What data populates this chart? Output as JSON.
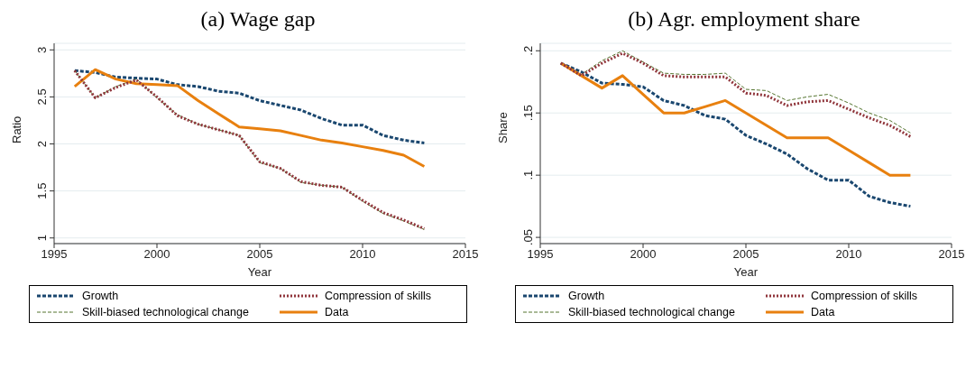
{
  "chart_data": [
    {
      "type": "line",
      "title": "(a) Wage gap",
      "xlabel": "Year",
      "ylabel": "Ratio",
      "x": [
        1996,
        1997,
        1998,
        1999,
        2000,
        2001,
        2002,
        2003,
        2004,
        2005,
        2006,
        2007,
        2008,
        2009,
        2010,
        2011,
        2012,
        2013
      ],
      "series": [
        {
          "name": "Growth",
          "color": "#1a476f",
          "line_style": "dashed",
          "values": [
            2.78,
            2.76,
            2.71,
            2.7,
            2.69,
            2.63,
            2.61,
            2.56,
            2.54,
            2.46,
            2.41,
            2.36,
            2.27,
            2.2,
            2.2,
            2.09,
            2.04,
            2.01
          ]
        },
        {
          "name": "Compression of skills",
          "color": "#90353b",
          "line_style": "dotted",
          "values": [
            2.78,
            2.49,
            2.6,
            2.68,
            2.5,
            2.3,
            2.21,
            2.15,
            2.09,
            1.81,
            1.74,
            1.6,
            1.56,
            1.54,
            1.4,
            1.27,
            1.19,
            1.1
          ]
        },
        {
          "name": "Skill-biased technological change",
          "color": "#55752f",
          "line_style": "dashed",
          "values": [
            2.78,
            2.49,
            2.61,
            2.69,
            2.49,
            2.31,
            2.21,
            2.15,
            2.09,
            1.8,
            1.74,
            1.59,
            1.56,
            1.54,
            1.39,
            1.26,
            1.18,
            1.09
          ]
        },
        {
          "name": "Data",
          "color": "#e8800f",
          "line_style": "solid",
          "values": [
            2.61,
            2.79,
            2.69,
            2.64,
            2.63,
            2.62,
            2.46,
            2.32,
            2.18,
            2.16,
            2.14,
            2.09,
            2.04,
            2.01,
            1.97,
            1.93,
            1.88,
            1.76
          ]
        }
      ],
      "xlim": [
        1995,
        2015
      ],
      "xticks": [
        1995,
        2000,
        2005,
        2010,
        2015
      ],
      "ylim": [
        0.94,
        3.07
      ],
      "yticks": [
        1,
        1.5,
        2,
        2.5,
        3
      ],
      "grid": "y",
      "legend": "bottom",
      "marker": "none"
    },
    {
      "type": "line",
      "title": "(b) Agr. employment share",
      "xlabel": "Year",
      "ylabel": "Share",
      "x": [
        1996,
        1997,
        1998,
        1999,
        2000,
        2001,
        2002,
        2003,
        2004,
        2005,
        2006,
        2007,
        2008,
        2009,
        2010,
        2011,
        2012,
        2013
      ],
      "series": [
        {
          "name": "Growth",
          "color": "#1a476f",
          "line_style": "dashed",
          "values": [
            0.19,
            0.183,
            0.174,
            0.173,
            0.171,
            0.16,
            0.156,
            0.148,
            0.145,
            0.132,
            0.125,
            0.117,
            0.105,
            0.096,
            0.096,
            0.083,
            0.078,
            0.075
          ]
        },
        {
          "name": "Compression of skills",
          "color": "#90353b",
          "line_style": "dotted",
          "values": [
            0.19,
            0.18,
            0.19,
            0.198,
            0.19,
            0.18,
            0.179,
            0.179,
            0.179,
            0.166,
            0.164,
            0.156,
            0.159,
            0.16,
            0.153,
            0.146,
            0.14,
            0.131
          ]
        },
        {
          "name": "Skill-biased technological change",
          "color": "#55752f",
          "line_style": "dashed",
          "values": [
            0.19,
            0.181,
            0.192,
            0.2,
            0.191,
            0.182,
            0.181,
            0.181,
            0.182,
            0.169,
            0.168,
            0.16,
            0.163,
            0.165,
            0.158,
            0.15,
            0.144,
            0.134
          ]
        },
        {
          "name": "Data",
          "color": "#e8800f",
          "line_style": "solid",
          "values": [
            0.19,
            0.18,
            0.17,
            0.18,
            0.165,
            0.15,
            0.15,
            0.155,
            0.16,
            0.15,
            0.14,
            0.13,
            0.13,
            0.13,
            0.12,
            0.11,
            0.1,
            0.1
          ]
        }
      ],
      "xlim": [
        1995,
        2015
      ],
      "xticks": [
        1995,
        2000,
        2005,
        2010,
        2015
      ],
      "ylim": [
        0.045,
        0.206
      ],
      "yticks": [
        {
          "value": 0.05,
          "label": ".05"
        },
        {
          "value": 0.1,
          "label": ".1"
        },
        {
          "value": 0.15,
          "label": ".15"
        },
        {
          "value": 0.2,
          "label": ".2"
        }
      ],
      "grid": "y",
      "legend": "bottom",
      "marker": "none"
    }
  ]
}
